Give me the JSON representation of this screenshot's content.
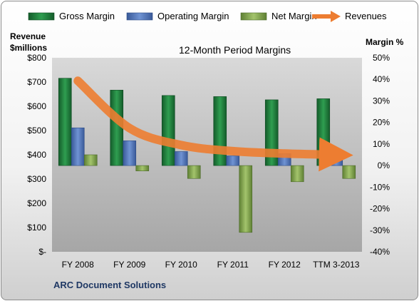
{
  "chart_data": {
    "type": "bar",
    "title": "12-Month Period Margins",
    "categories": [
      "FY 2008",
      "FY 2009",
      "FY 2010",
      "FY 2011",
      "FY 2012",
      "TTM 3-2013"
    ],
    "series": [
      {
        "name": "Gross Margin",
        "axis": "right",
        "values": [
          40.5,
          35.0,
          32.5,
          32.0,
          30.5,
          31.0
        ]
      },
      {
        "name": "Operating Margin",
        "axis": "right",
        "values": [
          17.5,
          11.5,
          6.5,
          4.5,
          5.5,
          6.5
        ]
      },
      {
        "name": "Net Margin",
        "axis": "right",
        "values": [
          5.0,
          -2.5,
          -6.0,
          -31.0,
          -7.5,
          -6.0
        ]
      },
      {
        "name": "Revenues",
        "axis": "left",
        "type": "line",
        "values": [
          705,
          510,
          440,
          415,
          405,
          400
        ]
      }
    ],
    "left_axis": {
      "label_line1": "Revenue",
      "label_line2": "$millions",
      "ylim": [
        0,
        800
      ],
      "ticks": [
        "$-",
        "$100",
        "$200",
        "$300",
        "$400",
        "$500",
        "$600",
        "$700",
        "$800"
      ]
    },
    "right_axis": {
      "label": "Margin %",
      "ylim": [
        -40,
        50
      ],
      "ticks": [
        "-40%",
        "-30%",
        "-20%",
        "-10%",
        "0%",
        "10%",
        "20%",
        "30%",
        "40%",
        "50%"
      ]
    },
    "legend_position": "top",
    "grid": false
  },
  "company": "ARC Document Solutions",
  "colors": {
    "gross": "#1e7a3c",
    "operating": "#4f74b8",
    "net": "#7fa54a",
    "revenue": "#ed7d31"
  }
}
